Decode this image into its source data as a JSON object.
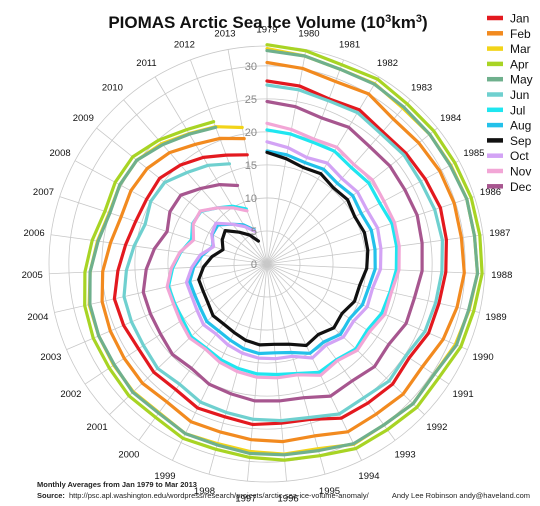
{
  "chart_data": {
    "type": "line",
    "subtype": "polar / radial",
    "title": "PIOMAS Arctic Sea Ice Volume (10³km³)",
    "title_main": "PIOMAS Arctic Sea Ice Volume (10",
    "title_exp": "3",
    "title_unit": "km",
    "title_exp2": "3",
    "title_close": ")",
    "radial_axis": {
      "min": 0,
      "max": 33,
      "ticks": [
        0,
        5,
        10,
        15,
        20,
        25,
        30
      ]
    },
    "angular_axis": {
      "years": [
        1979,
        1980,
        1981,
        1982,
        1983,
        1984,
        1985,
        1986,
        1987,
        1988,
        1989,
        1990,
        1991,
        1992,
        1993,
        1994,
        1995,
        1996,
        1997,
        1998,
        1999,
        2000,
        2001,
        2002,
        2003,
        2004,
        2005,
        2006,
        2007,
        2008,
        2009,
        2010,
        2011,
        2012,
        2013
      ],
      "direction": "clockwise from top"
    },
    "grid": true,
    "legend": {
      "position": "top-right",
      "entries": [
        "Jan",
        "Feb",
        "Mar",
        "Apr",
        "May",
        "Jun",
        "Jul",
        "Aug",
        "Sep",
        "Oct",
        "Nov",
        "Dec"
      ]
    },
    "colors": [
      "#e3191f",
      "#f28a1f",
      "#f2d418",
      "#a8d424",
      "#6fb08d",
      "#6fd0cf",
      "#1fe6f0",
      "#23c1ea",
      "#111111",
      "#d3a3f5",
      "#f2a6d6",
      "#a7568f"
    ],
    "series": [
      {
        "name": "Jan",
        "values": [
          27.7,
          27.4,
          26.7,
          27.2,
          26.6,
          26.9,
          27.2,
          27.6,
          27.4,
          27.1,
          26.7,
          26.6,
          25.8,
          26.3,
          26.0,
          25.9,
          24.4,
          24.2,
          24.4,
          24.0,
          24.2,
          23.5,
          23.7,
          23.3,
          23.6,
          23.7,
          22.6,
          21.6,
          20.9,
          20.7,
          20.8,
          19.9,
          18.8,
          17.6,
          16.8
        ]
      },
      {
        "name": "Feb",
        "values": [
          30.5,
          30.1,
          29.5,
          30.0,
          29.1,
          29.4,
          29.7,
          29.8,
          29.7,
          29.9,
          29.5,
          29.0,
          28.2,
          28.5,
          28.1,
          28.2,
          27.0,
          27.0,
          26.7,
          26.4,
          26.5,
          25.8,
          26.1,
          25.9,
          25.8,
          25.6,
          24.9,
          23.9,
          23.2,
          23.4,
          23.2,
          22.4,
          21.1,
          20.3,
          19.3
        ]
      },
      {
        "name": "Mar",
        "values": [
          32.6,
          32.0,
          31.5,
          31.8,
          31.3,
          31.5,
          31.6,
          31.8,
          31.7,
          31.9,
          31.4,
          31.0,
          30.3,
          30.6,
          30.1,
          30.3,
          29.0,
          28.9,
          28.5,
          28.2,
          28.5,
          27.8,
          28.0,
          27.8,
          27.7,
          27.6,
          26.8,
          25.9,
          25.1,
          25.3,
          25.2,
          24.2,
          23.0,
          22.2,
          21.0
        ]
      },
      {
        "name": "Apr",
        "values": [
          33.2,
          32.8,
          32.2,
          32.6,
          32.2,
          32.3,
          32.3,
          32.5,
          32.5,
          32.6,
          32.1,
          31.9,
          31.2,
          31.4,
          31.0,
          31.0,
          30.1,
          29.8,
          29.4,
          29.1,
          29.3,
          28.7,
          28.9,
          28.6,
          28.6,
          28.3,
          27.6,
          26.7,
          25.8,
          26.1,
          26.0,
          24.9,
          23.7,
          23.0
        ]
      },
      {
        "name": "May",
        "values": [
          32.3,
          32.0,
          31.5,
          31.7,
          31.5,
          31.5,
          31.5,
          31.8,
          31.7,
          31.9,
          31.3,
          31.2,
          30.3,
          30.6,
          30.1,
          30.2,
          29.3,
          29.0,
          28.8,
          28.4,
          28.5,
          27.9,
          28.1,
          27.7,
          27.7,
          27.5,
          26.8,
          25.8,
          25.0,
          25.3,
          25.2,
          24.0,
          22.9,
          22.1
        ]
      },
      {
        "name": "Jun",
        "values": [
          27.1,
          26.8,
          26.4,
          26.7,
          26.2,
          26.5,
          26.4,
          26.7,
          26.8,
          26.5,
          26.2,
          26.0,
          25.2,
          25.6,
          25.0,
          25.2,
          24.1,
          23.8,
          23.6,
          23.3,
          23.2,
          22.5,
          22.9,
          22.4,
          22.3,
          22.2,
          21.3,
          20.3,
          19.4,
          20.0,
          19.8,
          18.4,
          17.4,
          16.2
        ]
      },
      {
        "name": "Jul",
        "values": [
          20.3,
          20.0,
          19.7,
          19.9,
          19.4,
          19.7,
          19.4,
          19.9,
          19.8,
          19.6,
          19.1,
          18.9,
          18.2,
          18.6,
          17.9,
          18.2,
          17.2,
          16.8,
          16.7,
          16.4,
          16.1,
          15.7,
          15.9,
          15.3,
          15.2,
          15.3,
          14.3,
          13.2,
          12.0,
          12.8,
          12.8,
          11.3,
          10.2,
          8.9
        ]
      },
      {
        "name": "Aug",
        "values": [
          17.1,
          16.8,
          16.4,
          16.7,
          16.2,
          16.6,
          16.2,
          16.6,
          16.5,
          16.4,
          15.8,
          15.7,
          15.0,
          15.4,
          14.6,
          15.0,
          13.9,
          13.5,
          13.6,
          13.3,
          12.8,
          12.5,
          12.6,
          12.1,
          11.9,
          12.0,
          11.1,
          9.9,
          8.6,
          9.4,
          9.5,
          8.0,
          6.9,
          5.5
        ]
      },
      {
        "name": "Sep",
        "values": [
          16.9,
          16.2,
          15.6,
          15.9,
          15.3,
          15.6,
          15.1,
          15.5,
          15.4,
          15.1,
          14.4,
          14.4,
          13.6,
          14.0,
          13.2,
          13.7,
          12.6,
          12.2,
          12.3,
          12.0,
          11.5,
          11.2,
          11.3,
          10.7,
          10.5,
          10.6,
          9.6,
          8.4,
          7.0,
          7.7,
          8.1,
          6.4,
          5.1,
          3.7
        ]
      },
      {
        "name": "Oct",
        "values": [
          18.5,
          17.9,
          17.2,
          17.8,
          17.2,
          17.5,
          17.2,
          17.6,
          17.4,
          17.2,
          16.4,
          16.5,
          15.7,
          16.0,
          15.2,
          15.8,
          14.5,
          14.4,
          14.3,
          14.0,
          13.6,
          13.1,
          13.3,
          12.7,
          12.4,
          12.5,
          11.4,
          10.2,
          8.5,
          9.5,
          9.9,
          8.0,
          6.6,
          5.3
        ]
      },
      {
        "name": "Nov",
        "values": [
          21.3,
          20.7,
          20.2,
          20.6,
          20.0,
          20.4,
          20.1,
          20.3,
          20.2,
          20.0,
          19.3,
          19.4,
          18.6,
          18.9,
          18.1,
          18.7,
          17.4,
          17.3,
          17.2,
          16.9,
          16.5,
          15.9,
          16.2,
          15.7,
          15.4,
          15.5,
          14.5,
          13.3,
          11.7,
          12.7,
          12.9,
          11.3,
          9.9,
          8.6
        ]
      },
      {
        "name": "Dec",
        "values": [
          24.6,
          24.2,
          23.6,
          24.1,
          23.6,
          23.8,
          23.7,
          23.9,
          23.7,
          23.5,
          22.9,
          22.9,
          22.1,
          22.5,
          21.9,
          22.2,
          21.0,
          20.8,
          20.8,
          20.4,
          20.2,
          19.5,
          19.8,
          19.3,
          19.2,
          19.2,
          18.3,
          17.2,
          15.9,
          16.7,
          16.7,
          15.2,
          14.0,
          12.7
        ]
      }
    ]
  },
  "footer": {
    "range_note": "Monthly Averages from Jan 1979 to Mar 2013",
    "source_label": "Source:",
    "source_url": "http://psc.apl.washington.edu/wordpress/research/projects/arctic-sea-ice-volume-anomaly/",
    "credit": "Andy Lee Robinson andy@haveland.com"
  }
}
